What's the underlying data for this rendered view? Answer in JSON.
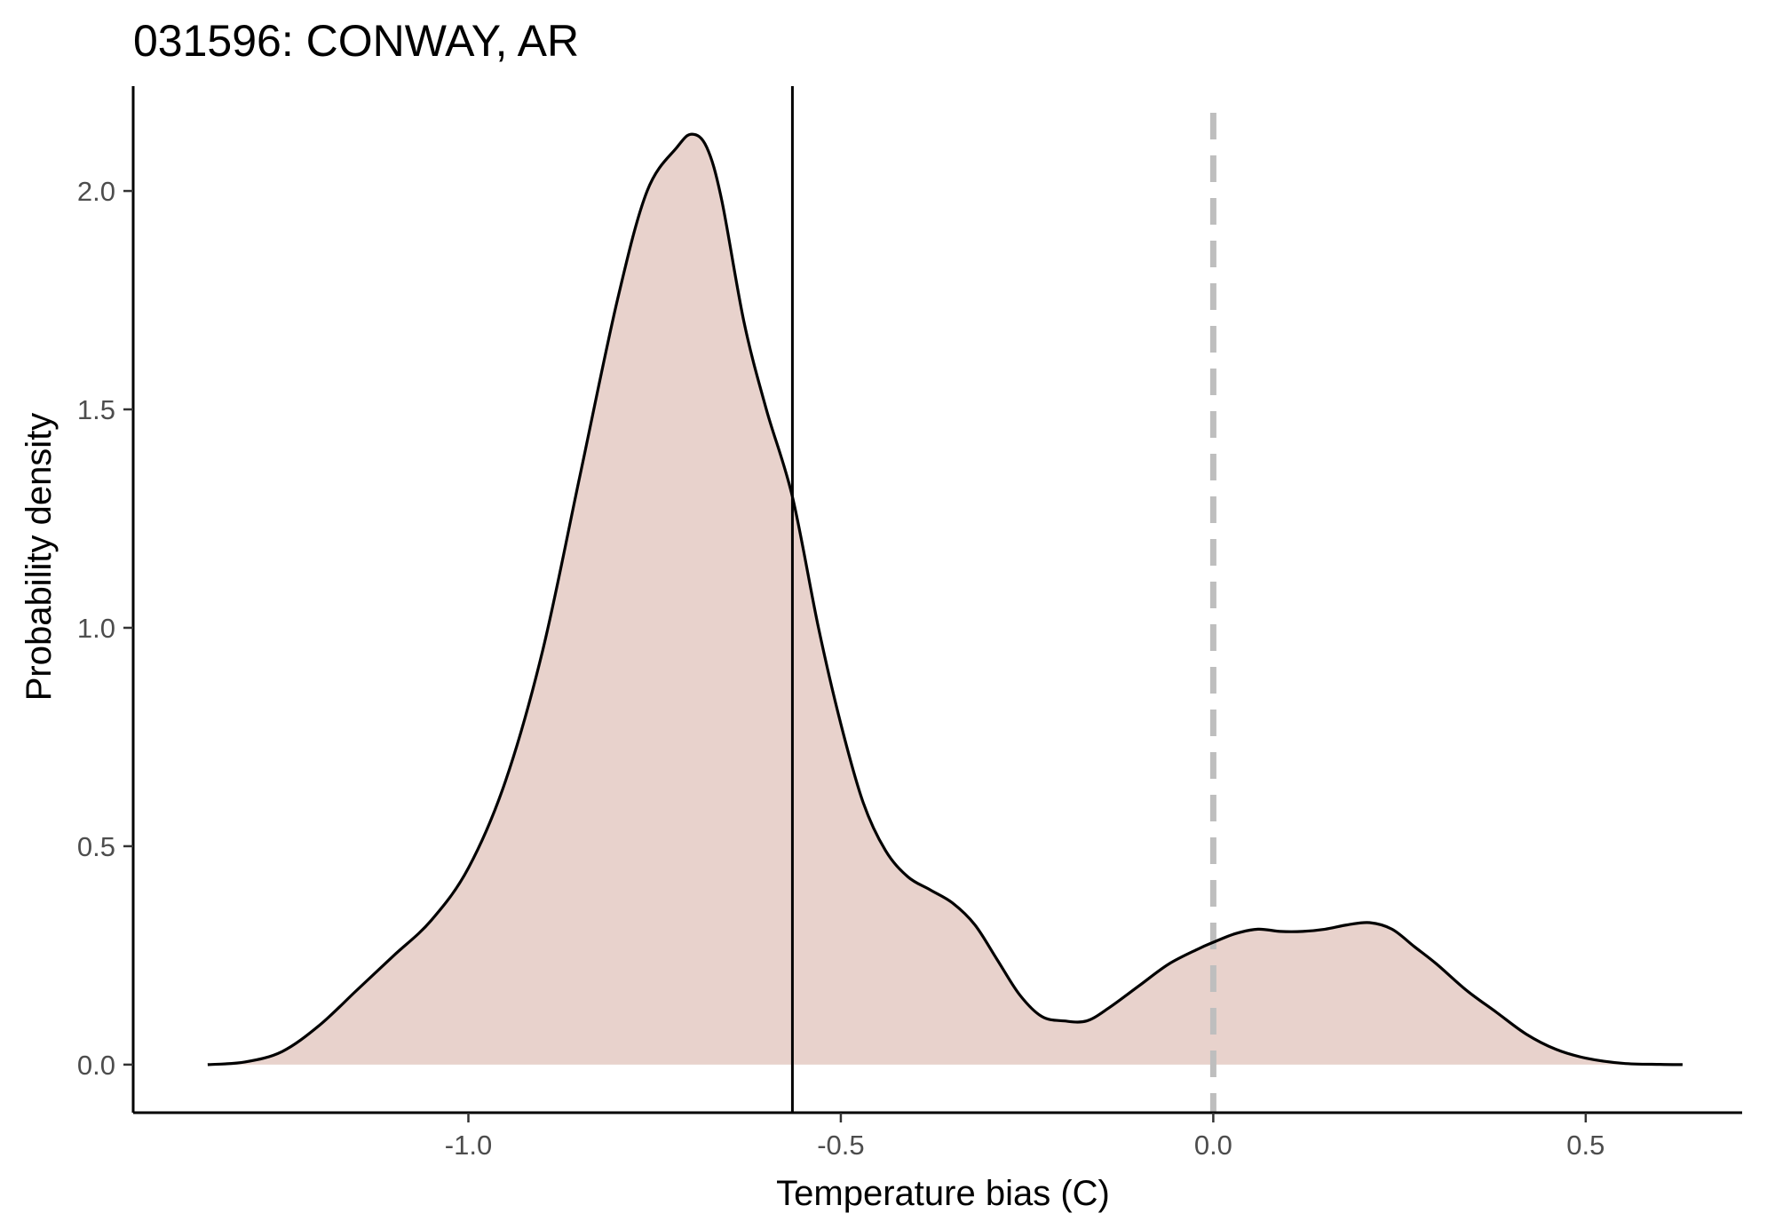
{
  "chart_data": {
    "type": "area",
    "title": "031596: CONWAY, AR",
    "xlabel": "Temperature bias (C)",
    "ylabel": "Probability density",
    "xlim": [
      -1.45,
      0.71
    ],
    "ylim": [
      -0.11,
      2.24
    ],
    "x_ticks": [
      -1.0,
      -0.5,
      0.0,
      0.5
    ],
    "x_tick_labels": [
      "-1.0",
      "-0.5",
      "0.0",
      "0.5"
    ],
    "y_ticks": [
      0.0,
      0.5,
      1.0,
      1.5,
      2.0
    ],
    "y_tick_labels": [
      "0.0",
      "0.5",
      "1.0",
      "1.5",
      "2.0"
    ],
    "grid": false,
    "fill_color": "#e8d2cc",
    "line_color": "#000000",
    "vlines": [
      {
        "x": -0.565,
        "style": "solid",
        "color": "#000000"
      },
      {
        "x": 0.0,
        "style": "dashed",
        "color": "#bebebe"
      }
    ],
    "series": [
      {
        "x": [
          -1.35,
          -1.3,
          -1.25,
          -1.2,
          -1.15,
          -1.1,
          -1.05,
          -1.0,
          -0.95,
          -0.9,
          -0.85,
          -0.8,
          -0.76,
          -0.72,
          -0.7,
          -0.68,
          -0.66,
          -0.63,
          -0.6,
          -0.565,
          -0.53,
          -0.5,
          -0.47,
          -0.44,
          -0.41,
          -0.38,
          -0.35,
          -0.32,
          -0.29,
          -0.26,
          -0.23,
          -0.2,
          -0.17,
          -0.14,
          -0.1,
          -0.06,
          -0.02,
          0.0,
          0.03,
          0.06,
          0.09,
          0.12,
          0.15,
          0.18,
          0.21,
          0.24,
          0.27,
          0.3,
          0.34,
          0.38,
          0.42,
          0.46,
          0.5,
          0.55,
          0.6,
          0.63
        ],
        "y": [
          0.0,
          0.006,
          0.03,
          0.09,
          0.17,
          0.25,
          0.33,
          0.45,
          0.65,
          0.95,
          1.35,
          1.75,
          2.0,
          2.1,
          2.13,
          2.1,
          1.98,
          1.7,
          1.5,
          1.3,
          1.0,
          0.78,
          0.6,
          0.49,
          0.43,
          0.4,
          0.37,
          0.32,
          0.24,
          0.16,
          0.11,
          0.1,
          0.1,
          0.13,
          0.18,
          0.23,
          0.265,
          0.28,
          0.3,
          0.31,
          0.305,
          0.305,
          0.31,
          0.32,
          0.325,
          0.31,
          0.27,
          0.23,
          0.17,
          0.12,
          0.07,
          0.035,
          0.015,
          0.003,
          0.0005,
          0.0
        ]
      }
    ]
  }
}
